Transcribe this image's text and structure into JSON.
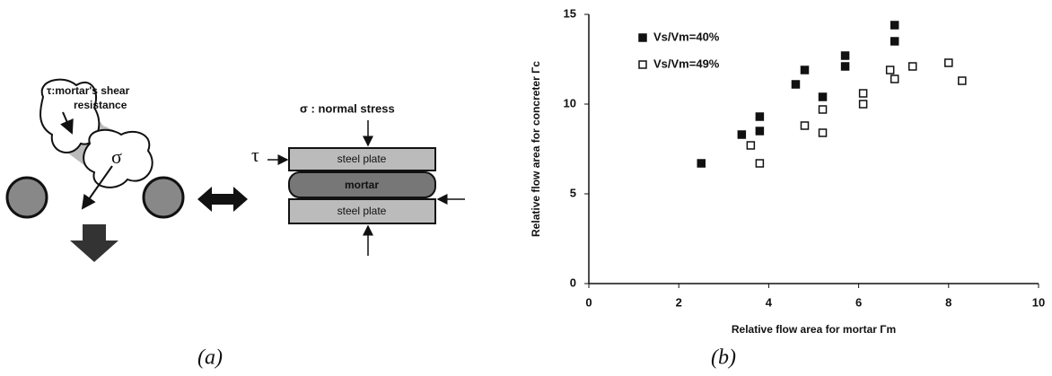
{
  "diagram": {
    "shear_label": [
      "τ:mortar's shear",
      "resistance"
    ],
    "sigma": "σ",
    "normal_stress": "σ : normal stress",
    "tau": "τ",
    "top_plate": "steel plate",
    "mortar": "mortar",
    "bottom_plate": "steel plate"
  },
  "captions": [
    "(a)",
    "(b)"
  ],
  "chart_data": {
    "type": "scatter",
    "xlabel": "Relative flow area for mortar Γm",
    "ylabel": "Relative flow area for concreter Γc",
    "xlim": [
      0,
      10
    ],
    "xticks": [
      0,
      2,
      4,
      6,
      8,
      10
    ],
    "ylim": [
      0,
      15
    ],
    "yticks": [
      0,
      5,
      10,
      15
    ],
    "legend": "upper-left",
    "grid": false,
    "series": [
      {
        "name": "Vs/Vm=40%",
        "color": "#111111",
        "marker": "filled-square",
        "x": [
          2.5,
          3.4,
          3.8,
          3.8,
          4.6,
          4.8,
          5.2,
          5.7,
          5.7,
          6.8,
          6.8
        ],
        "values": [
          6.7,
          8.3,
          8.5,
          9.3,
          11.1,
          11.9,
          10.4,
          12.1,
          12.7,
          14.4,
          13.5
        ]
      },
      {
        "name": "Vs/Vm=49%",
        "color": "#111111",
        "marker": "hollow-square",
        "x": [
          3.6,
          3.8,
          4.8,
          5.2,
          5.2,
          6.1,
          6.1,
          6.7,
          6.8,
          7.2,
          8.0,
          8.3
        ],
        "values": [
          7.7,
          6.7,
          8.8,
          8.4,
          9.7,
          10.0,
          10.6,
          11.9,
          11.4,
          12.1,
          12.3,
          11.3
        ]
      }
    ]
  }
}
